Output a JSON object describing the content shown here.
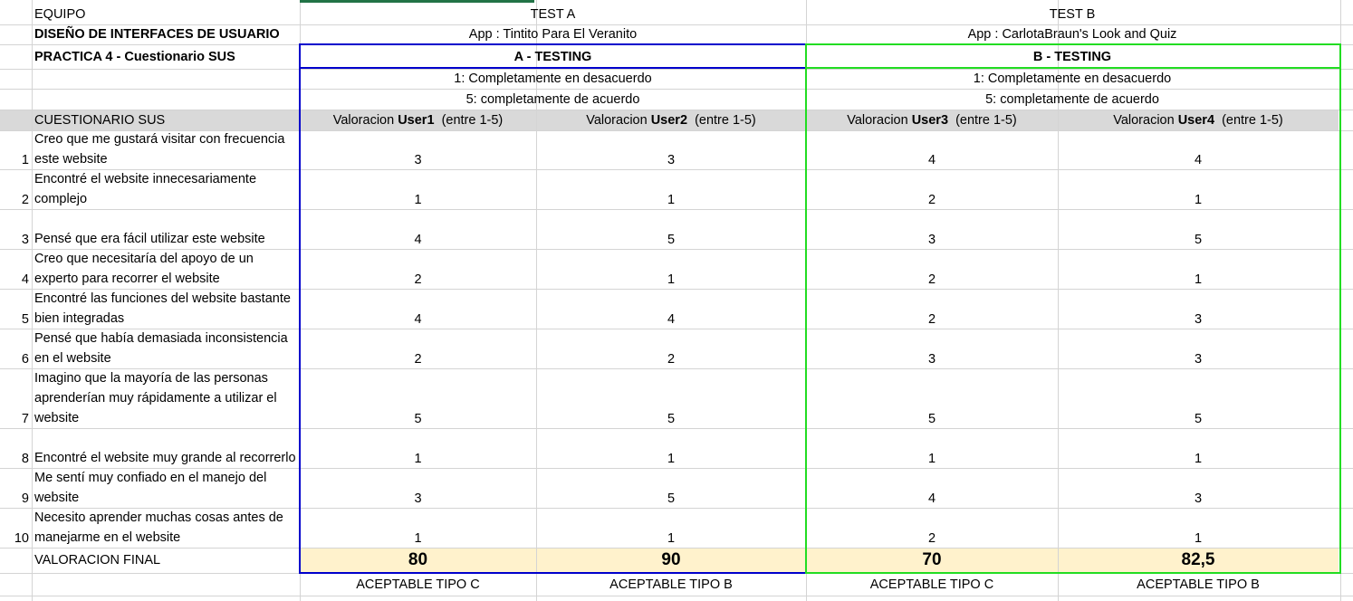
{
  "sheet": {
    "header": {
      "equipo_label": "EQUIPO",
      "course_title": "DISEÑO DE INTERFACES DE USUARIO",
      "practice_title": "PRACTICA 4 - Cuestionario SUS",
      "test_a": "TEST A",
      "test_b": "TEST B",
      "app_a": "App : Tintito Para El Veranito",
      "app_b": "App : CarlotaBraun's Look and Quiz",
      "testing_a": "A - TESTING",
      "testing_b": "B - TESTING",
      "scale_1_a": "1: Completamente en desacuerdo",
      "scale_5_a": "5: completamente de acuerdo",
      "scale_1_b": "1: Completamente en desacuerdo",
      "scale_5_b": "5: completamente de acuerdo"
    },
    "table": {
      "questionnaire_label": "CUESTIONARIO SUS",
      "columns": [
        {
          "prefix": "Valoracion ",
          "user": "User1",
          "range": "  (entre 1-5)"
        },
        {
          "prefix": "Valoracion ",
          "user": "User2",
          "range": "  (entre 1-5)"
        },
        {
          "prefix": "Valoracion ",
          "user": "User3",
          "range": "  (entre 1-5)"
        },
        {
          "prefix": "Valoracion ",
          "user": "User4",
          "range": "  (entre 1-5)"
        }
      ],
      "rows": [
        {
          "n": "1",
          "question": "Creo que me gustará visitar con frecuencia este website",
          "scores": [
            "3",
            "3",
            "4",
            "4"
          ]
        },
        {
          "n": "2",
          "question": "Encontré el website innecesariamente complejo",
          "scores": [
            "1",
            "1",
            "2",
            "1"
          ]
        },
        {
          "n": "3",
          "question": "Pensé que era fácil utilizar este website",
          "scores": [
            "4",
            "5",
            "3",
            "5"
          ]
        },
        {
          "n": "4",
          "question": "Creo que necesitaría del apoyo de un experto para recorrer el website",
          "scores": [
            "2",
            "1",
            "2",
            "1"
          ]
        },
        {
          "n": "5",
          "question": "Encontré las funciones del website bastante bien integradas",
          "scores": [
            "4",
            "4",
            "2",
            "3"
          ]
        },
        {
          "n": "6",
          "question": "Pensé que había demasiada inconsistencia en el website",
          "scores": [
            "2",
            "2",
            "3",
            "3"
          ]
        },
        {
          "n": "7",
          "question": "Imagino que la mayoría de las personas aprenderían muy rápidamente a utilizar el website",
          "scores": [
            "5",
            "5",
            "5",
            "5"
          ]
        },
        {
          "n": "8",
          "question": "Encontré el website muy grande al recorrerlo",
          "scores": [
            "1",
            "1",
            "1",
            "1"
          ]
        },
        {
          "n": "9",
          "question": "Me sentí muy confiado en el manejo del website",
          "scores": [
            "3",
            "5",
            "4",
            "3"
          ]
        },
        {
          "n": "10",
          "question": "Necesito aprender muchas cosas antes de manejarme en el website",
          "scores": [
            "1",
            "1",
            "2",
            "1"
          ]
        }
      ],
      "final_label": "VALORACION FINAL",
      "final_scores": [
        "80",
        "90",
        "70",
        "82,5"
      ],
      "classifications": [
        "ACEPTABLE TIPO C",
        "ACEPTABLE TIPO B",
        "ACEPTABLE TIPO C",
        "ACEPTABLE TIPO B"
      ]
    }
  },
  "colors": {
    "test_a_border": "#0000cc",
    "test_b_border": "#22dd22",
    "header_band": "#d9d9d9",
    "final_band": "#fff2cc",
    "gridline": "#d4d4d4"
  }
}
